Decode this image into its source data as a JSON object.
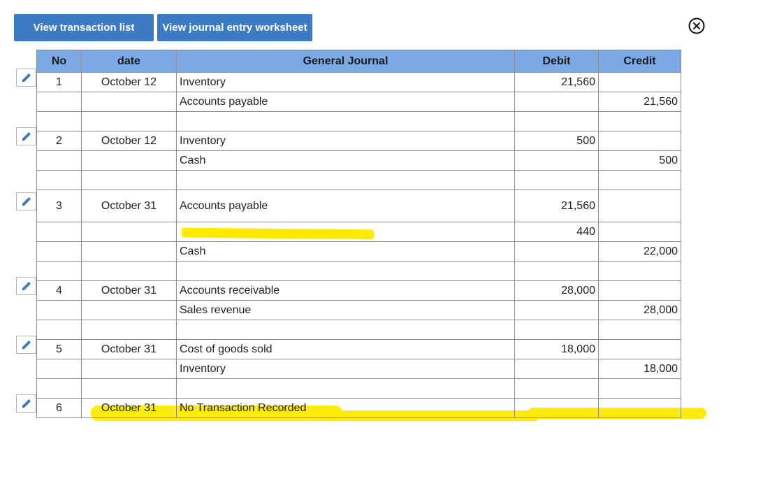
{
  "toolbar": {
    "view_transaction_list": "View transaction list",
    "view_journal_worksheet": "View journal entry worksheet"
  },
  "icons": {
    "close": "close-circle-icon",
    "edit": "pencil-icon"
  },
  "colors": {
    "button": "#3d7ac4",
    "header": "#7aa9e5",
    "highlight": "#ffea00"
  },
  "table": {
    "headers": {
      "no": "No",
      "date": "date",
      "journal": "General Journal",
      "debit": "Debit",
      "credit": "Credit"
    },
    "rows": [
      {
        "no": "1",
        "date": "October 12",
        "account": "Inventory",
        "debit": "21,560",
        "credit": ""
      },
      {
        "no": "",
        "date": "",
        "account": "Accounts payable",
        "debit": "",
        "credit": "21,560"
      },
      {
        "no": "",
        "date": "",
        "account": "",
        "debit": "",
        "credit": ""
      },
      {
        "no": "2",
        "date": "October 12",
        "account": "Inventory",
        "debit": "500",
        "credit": ""
      },
      {
        "no": "",
        "date": "",
        "account": "Cash",
        "debit": "",
        "credit": "500"
      },
      {
        "no": "",
        "date": "",
        "account": "",
        "debit": "",
        "credit": ""
      },
      {
        "no": "3",
        "date": "October 31",
        "account": "Accounts payable",
        "debit": "21,560",
        "credit": ""
      },
      {
        "no": "",
        "date": "",
        "account": "",
        "debit": "440",
        "credit": ""
      },
      {
        "no": "",
        "date": "",
        "account": "Cash",
        "debit": "",
        "credit": "22,000"
      },
      {
        "no": "",
        "date": "",
        "account": "",
        "debit": "",
        "credit": ""
      },
      {
        "no": "4",
        "date": "October 31",
        "account": "Accounts receivable",
        "debit": "28,000",
        "credit": ""
      },
      {
        "no": "",
        "date": "",
        "account": "Sales revenue",
        "debit": "",
        "credit": "28,000"
      },
      {
        "no": "",
        "date": "",
        "account": "",
        "debit": "",
        "credit": ""
      },
      {
        "no": "5",
        "date": "October 31",
        "account": "Cost of goods sold",
        "debit": "18,000",
        "credit": ""
      },
      {
        "no": "",
        "date": "",
        "account": "Inventory",
        "debit": "",
        "credit": "18,000"
      },
      {
        "no": "",
        "date": "",
        "account": "",
        "debit": "",
        "credit": ""
      },
      {
        "no": "6",
        "date": "October 31",
        "account": "No Transaction Recorded",
        "debit": "",
        "credit": ""
      }
    ]
  }
}
